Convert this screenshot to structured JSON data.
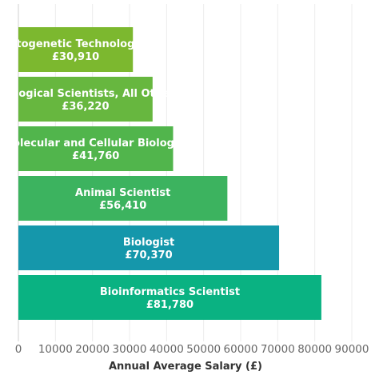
{
  "chart_data": {
    "type": "bar",
    "orientation": "horizontal",
    "title": "",
    "xlabel": "Annual Average Salary (£)",
    "ylabel": "",
    "xlim": [
      0,
      90000
    ],
    "xticks": [
      0,
      10000,
      20000,
      30000,
      40000,
      50000,
      60000,
      70000,
      80000,
      90000
    ],
    "xtick_labels": [
      "0",
      "10000",
      "20000",
      "30000",
      "40000",
      "50000",
      "60000",
      "70000",
      "80000",
      "90000"
    ],
    "grid": "vertical",
    "categories": [
      "Cytogenetic Technologist",
      "Biological Scientists, All Other",
      "Molecular and Cellular Biologist",
      "Animal Scientist",
      "Biologist",
      "Bioinformatics Scientist"
    ],
    "values": [
      30910,
      36220,
      41760,
      56410,
      70370,
      81780
    ],
    "value_labels": [
      "£30,910",
      "£36,220",
      "£41,760",
      "£56,410",
      "£70,370",
      "£81,780"
    ],
    "colors": [
      "#7cb82f",
      "#67b73f",
      "#51b54c",
      "#3cb35f",
      "#1597ab",
      "#0ab282"
    ]
  }
}
